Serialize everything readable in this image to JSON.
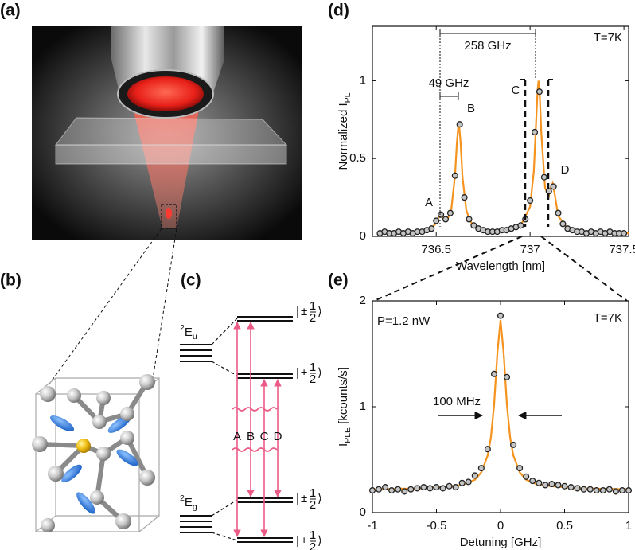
{
  "panel_labels": [
    "(a)",
    "(b)",
    "(c)",
    "(d)",
    "(e)"
  ],
  "energy_diagram": {
    "excited": [
      {
        "text": "2",
        "shift": "sup"
      },
      {
        "text": "E"
      },
      {
        "text": "u",
        "shift": "sub"
      }
    ],
    "ground": [
      {
        "text": "2",
        "shift": "sup"
      },
      {
        "text": "E"
      },
      {
        "text": "g",
        "shift": "sub"
      }
    ],
    "kets": [
      {
        "open": "|",
        "sign": "±",
        "num": "1",
        "den": "2",
        "close": "⟩"
      },
      {
        "open": "|",
        "sign": "±",
        "num": "1",
        "den": "2",
        "close": "⟩"
      },
      {
        "open": "|",
        "sign": "±",
        "num": "1",
        "den": "2",
        "close": "⟩"
      },
      {
        "open": "|",
        "sign": "±",
        "num": "1",
        "den": "2",
        "close": "⟩"
      }
    ],
    "transitions": [
      "A",
      "B",
      "C",
      "D"
    ]
  },
  "chart_data": [
    {
      "type": "line",
      "x_label": "Wavelength [nm]",
      "y_label": [
        {
          "text": "Normalized I"
        },
        {
          "text": "PL",
          "shift": "sub"
        }
      ],
      "xlim": [
        736.16,
        737.525
      ],
      "ylim": [
        0,
        1.35
      ],
      "xticks": [
        736.5,
        737,
        737.5
      ],
      "yticks": [
        0,
        0.5,
        1
      ],
      "annotations": {
        "temperature": "T=7K",
        "ground_splitting": "258 GHz",
        "excited_splitting": "49 GHz",
        "peaks": [
          "A",
          "B",
          "C",
          "D"
        ]
      },
      "series": [
        {
          "type": "line",
          "color": "#f5931e",
          "x": [
            736.2,
            736.4,
            736.45,
            736.48,
            736.5,
            736.51,
            736.52,
            736.53,
            736.54,
            736.56,
            736.58,
            736.6,
            736.61,
            736.62,
            736.63,
            736.64,
            736.66,
            736.68,
            736.7,
            736.75,
            736.85,
            736.95,
            737.0,
            737.02,
            737.03,
            737.04,
            737.045,
            737.05,
            737.06,
            737.08,
            737.1,
            737.11,
            737.12,
            737.13,
            737.15,
            737.2,
            737.3,
            737.525
          ],
          "values": [
            0.03,
            0.03,
            0.04,
            0.06,
            0.085,
            0.115,
            0.14,
            0.13,
            0.11,
            0.11,
            0.17,
            0.39,
            0.6,
            0.74,
            0.6,
            0.38,
            0.17,
            0.1,
            0.07,
            0.04,
            0.04,
            0.07,
            0.19,
            0.42,
            0.68,
            0.94,
            1.0,
            0.95,
            0.66,
            0.31,
            0.26,
            0.31,
            0.34,
            0.28,
            0.13,
            0.05,
            0.03,
            0.02
          ]
        },
        {
          "type": "scatter",
          "color": "#c4c4c4",
          "x": [
            736.2,
            736.225,
            736.25,
            736.275,
            736.3,
            736.325,
            736.35,
            736.375,
            736.4,
            736.425,
            736.45,
            736.475,
            736.5,
            736.525,
            736.55,
            736.575,
            736.6,
            736.625,
            736.65,
            736.675,
            736.7,
            736.725,
            736.75,
            736.775,
            736.8,
            736.825,
            736.85,
            736.875,
            736.9,
            736.925,
            736.95,
            736.975,
            737.0,
            737.025,
            737.05,
            737.075,
            737.1,
            737.125,
            737.15,
            737.175,
            737.2,
            737.225,
            737.25,
            737.275,
            737.3,
            737.325,
            737.35,
            737.375,
            737.4,
            737.425,
            737.45,
            737.475,
            737.5
          ],
          "values": [
            0.02,
            0.03,
            0.02,
            0.02,
            0.03,
            0.02,
            0.03,
            0.02,
            0.03,
            0.03,
            0.04,
            0.05,
            0.1,
            0.14,
            0.11,
            0.15,
            0.39,
            0.72,
            0.25,
            0.11,
            0.07,
            0.05,
            0.04,
            0.03,
            0.03,
            0.03,
            0.04,
            0.04,
            0.05,
            0.06,
            0.07,
            0.11,
            0.23,
            0.67,
            0.93,
            0.38,
            0.29,
            0.32,
            0.15,
            0.08,
            0.05,
            0.04,
            0.03,
            0.03,
            0.02,
            0.03,
            0.02,
            0.03,
            0.02,
            0.03,
            0.02,
            0.02,
            0.02
          ]
        }
      ]
    },
    {
      "type": "line",
      "x_label": "Detuning [GHz]",
      "y_label": [
        {
          "text": "I"
        },
        {
          "text": "PLE",
          "shift": "sub"
        },
        {
          "text": " [kcounts/s]"
        }
      ],
      "xlim": [
        -1,
        1
      ],
      "ylim": [
        0,
        2
      ],
      "xticks": [
        -1,
        -0.5,
        0,
        0.5,
        1
      ],
      "yticks": [
        0,
        1,
        2
      ],
      "annotations": {
        "power": "P=1.2 nW",
        "temperature": "T=7K",
        "linewidth": "100 MHz"
      },
      "series": [
        {
          "type": "line",
          "color": "#f5931e",
          "x": [
            -1,
            -0.6,
            -0.4,
            -0.3,
            -0.2,
            -0.15,
            -0.1,
            -0.075,
            -0.05,
            -0.025,
            0,
            0.025,
            0.05,
            0.075,
            0.1,
            0.15,
            0.2,
            0.3,
            0.4,
            0.6,
            1
          ],
          "values": [
            0.22,
            0.23,
            0.25,
            0.26,
            0.31,
            0.38,
            0.54,
            0.71,
            1.02,
            1.5,
            1.82,
            1.5,
            1.02,
            0.71,
            0.54,
            0.38,
            0.31,
            0.26,
            0.25,
            0.23,
            0.22
          ]
        },
        {
          "type": "scatter",
          "color": "#c4c4c4",
          "x": [
            -1,
            -0.95,
            -0.9,
            -0.85,
            -0.8,
            -0.75,
            -0.7,
            -0.65,
            -0.6,
            -0.55,
            -0.5,
            -0.45,
            -0.4,
            -0.35,
            -0.3,
            -0.25,
            -0.2,
            -0.15,
            -0.1,
            -0.05,
            0,
            0.05,
            0.1,
            0.15,
            0.2,
            0.25,
            0.3,
            0.35,
            0.4,
            0.45,
            0.5,
            0.55,
            0.6,
            0.65,
            0.7,
            0.75,
            0.8,
            0.85,
            0.9,
            0.95,
            1
          ],
          "values": [
            0.21,
            0.22,
            0.24,
            0.21,
            0.22,
            0.2,
            0.22,
            0.23,
            0.24,
            0.23,
            0.24,
            0.23,
            0.25,
            0.24,
            0.28,
            0.29,
            0.35,
            0.42,
            0.6,
            1.31,
            1.86,
            1.28,
            0.64,
            0.42,
            0.34,
            0.3,
            0.28,
            0.26,
            0.27,
            0.26,
            0.25,
            0.24,
            0.23,
            0.22,
            0.22,
            0.21,
            0.21,
            0.22,
            0.2,
            0.21,
            0.21
          ]
        }
      ]
    }
  ]
}
